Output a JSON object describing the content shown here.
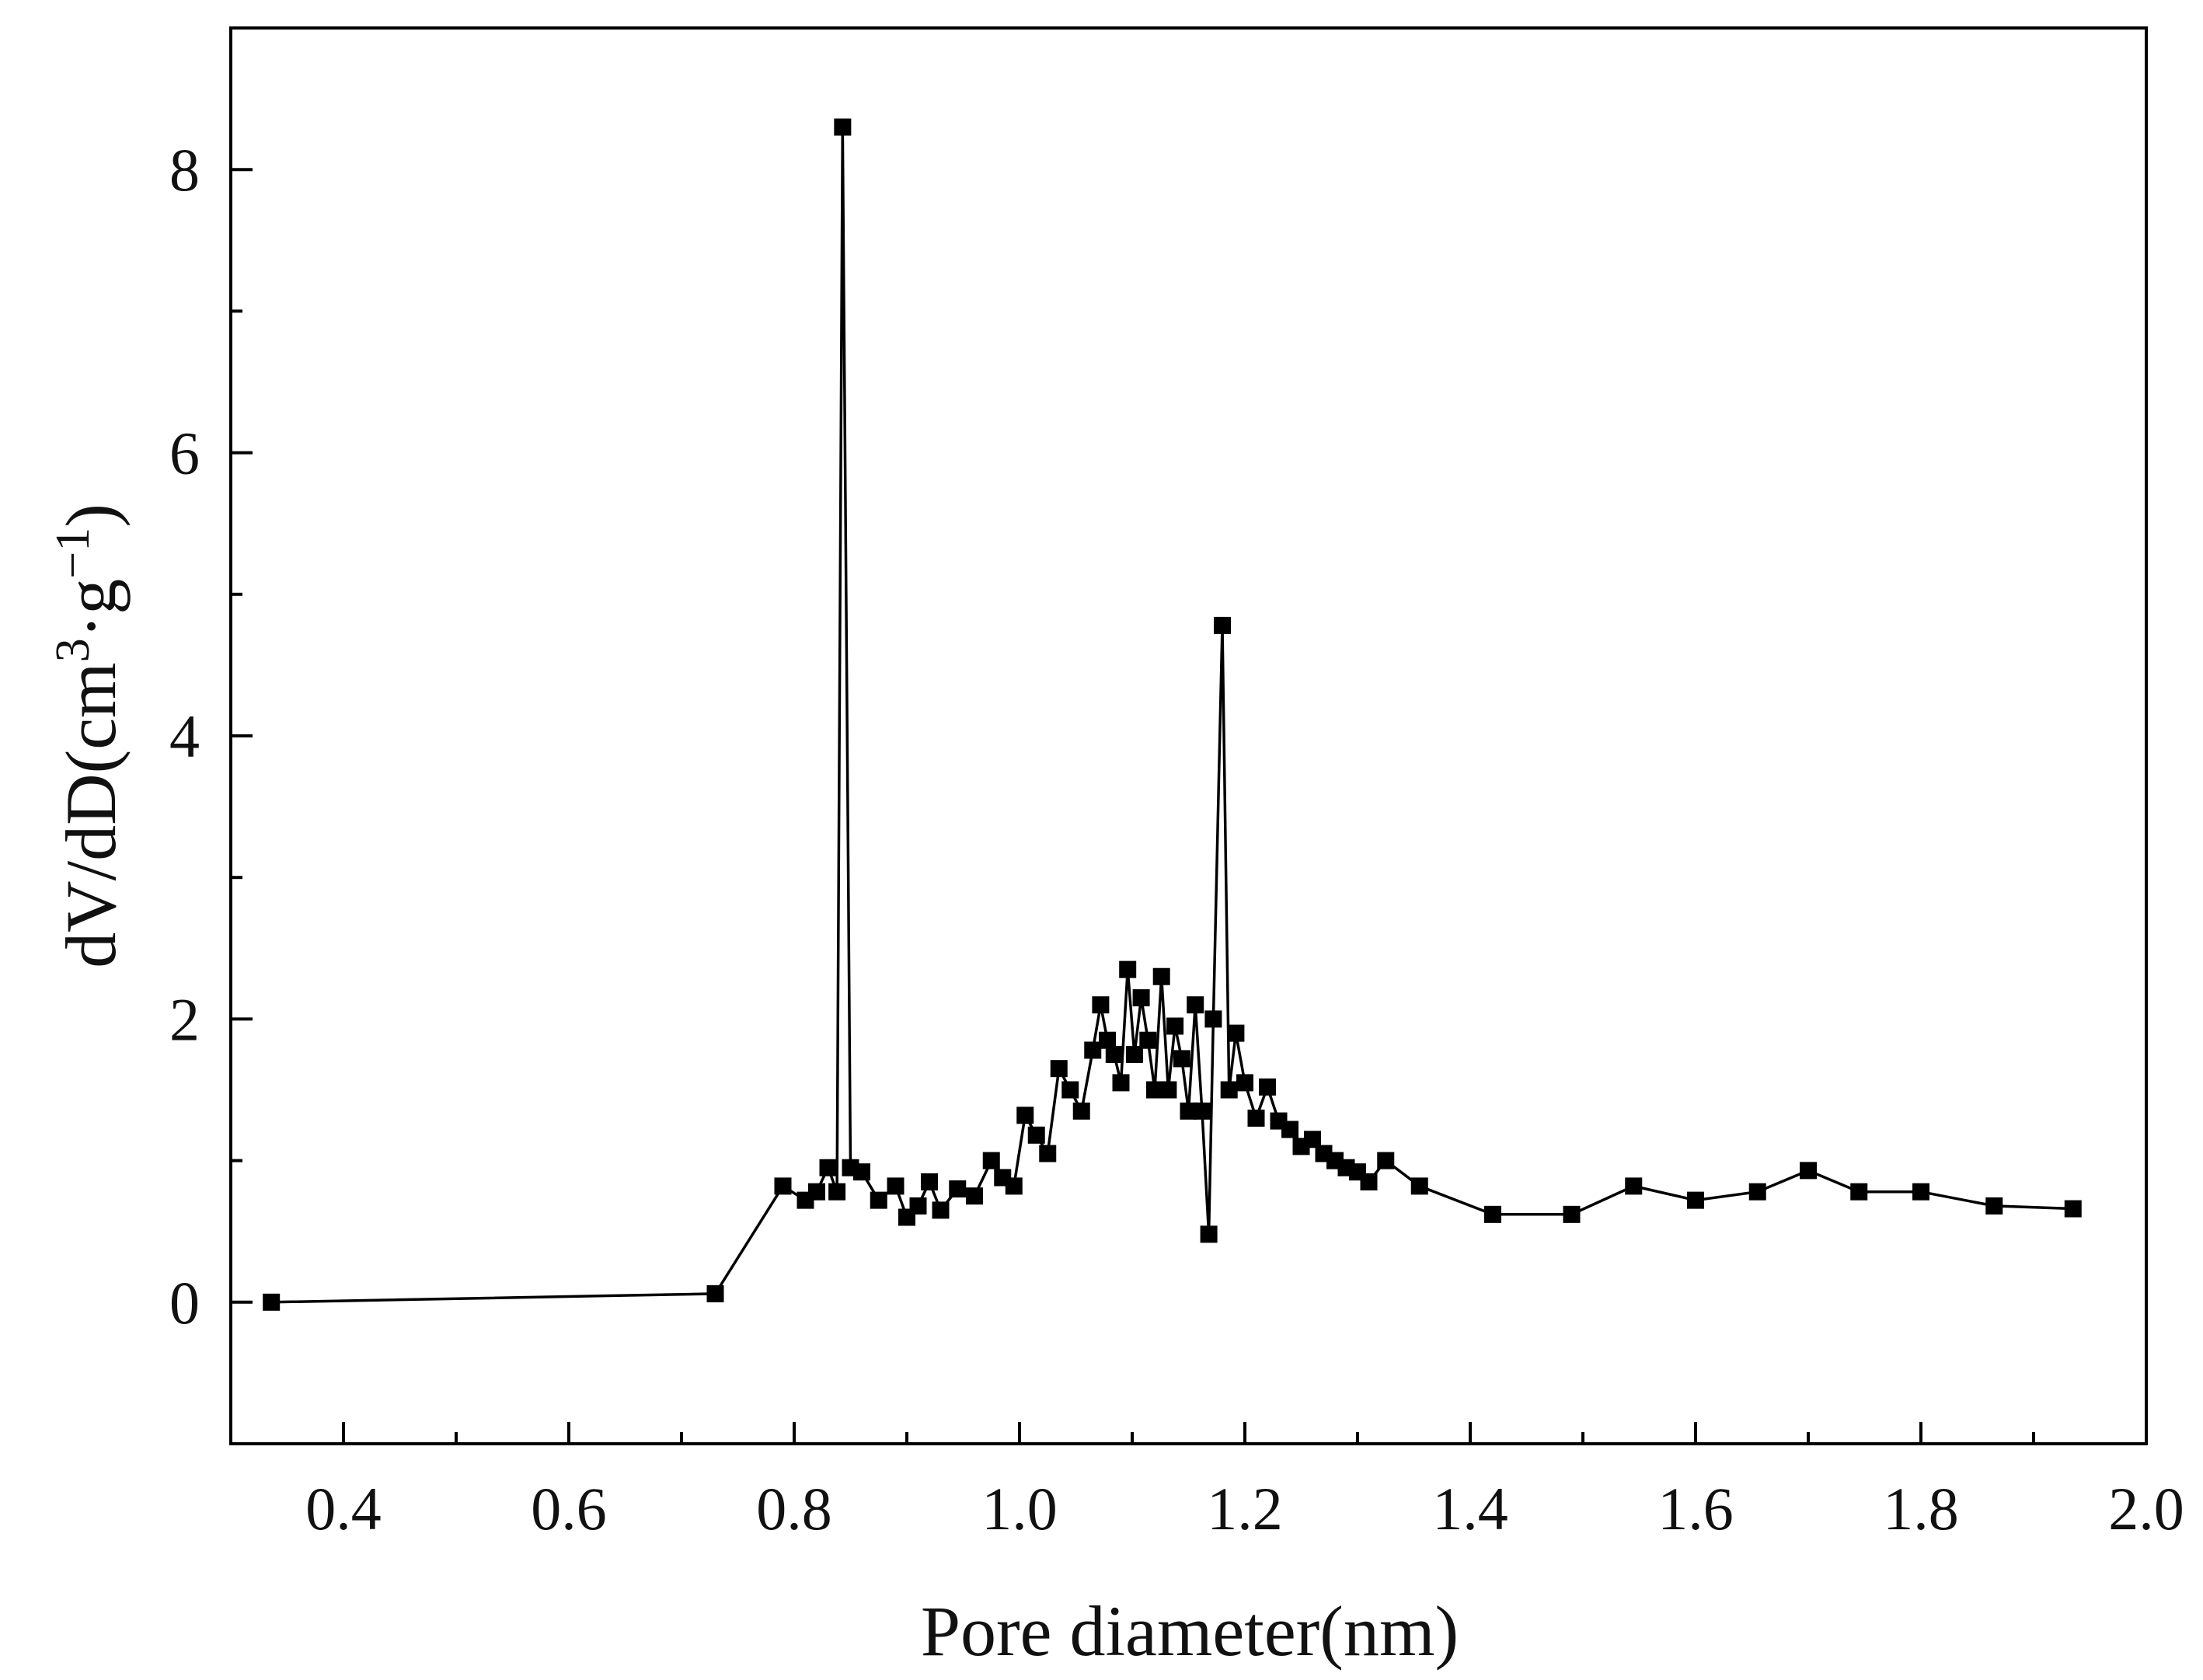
{
  "chart_data": {
    "type": "line",
    "xlabel": "Pore diameter(nm)",
    "ylabel_parts": {
      "base": "dV/dD(cm",
      "sup1": "3",
      "mid": "·g",
      "sup2": "−1",
      "end": ")"
    },
    "xlim": [
      0.3,
      2.0
    ],
    "ylim": [
      -1,
      9
    ],
    "x_ticks": [
      0.4,
      0.6,
      0.8,
      1.0,
      1.2,
      1.4,
      1.6,
      1.8,
      2.0
    ],
    "x_tick_labels": [
      "0.4",
      "0.6",
      "0.8",
      "1.0",
      "1.2",
      "1.4",
      "1.6",
      "1.8",
      "2.0"
    ],
    "y_ticks": [
      0,
      2,
      4,
      6,
      8
    ],
    "y_tick_labels": [
      "0",
      "2",
      "4",
      "6",
      "8"
    ],
    "grid": false,
    "legend": "none",
    "marker": "square",
    "color": "#000000",
    "series": [
      {
        "x": [
          0.336,
          0.73,
          0.79,
          0.81,
          0.82,
          0.83,
          0.838,
          0.843,
          0.85,
          0.86,
          0.875,
          0.89,
          0.9,
          0.91,
          0.92,
          0.93,
          0.945,
          0.96,
          0.975,
          0.985,
          0.995,
          1.005,
          1.015,
          1.025,
          1.035,
          1.045,
          1.055,
          1.065,
          1.072,
          1.078,
          1.084,
          1.09,
          1.096,
          1.102,
          1.108,
          1.114,
          1.12,
          1.126,
          1.132,
          1.138,
          1.144,
          1.15,
          1.156,
          1.162,
          1.168,
          1.172,
          1.18,
          1.186,
          1.192,
          1.2,
          1.21,
          1.22,
          1.23,
          1.24,
          1.25,
          1.26,
          1.27,
          1.28,
          1.29,
          1.3,
          1.31,
          1.325,
          1.355,
          1.42,
          1.49,
          1.545,
          1.6,
          1.655,
          1.7,
          1.745,
          1.8,
          1.865,
          1.935
        ],
        "y": [
          0.0,
          0.06,
          0.82,
          0.72,
          0.78,
          0.95,
          0.78,
          8.3,
          0.95,
          0.92,
          0.72,
          0.82,
          0.6,
          0.68,
          0.85,
          0.65,
          0.8,
          0.75,
          1.0,
          0.88,
          0.82,
          1.32,
          1.18,
          1.05,
          1.65,
          1.5,
          1.35,
          1.78,
          2.1,
          1.85,
          1.75,
          1.55,
          2.35,
          1.75,
          2.15,
          1.85,
          1.5,
          2.3,
          1.5,
          1.95,
          1.72,
          1.35,
          2.1,
          1.35,
          0.48,
          2.0,
          4.78,
          1.5,
          1.9,
          1.55,
          1.3,
          1.52,
          1.28,
          1.22,
          1.1,
          1.15,
          1.05,
          1.0,
          0.95,
          0.92,
          0.85,
          1.0,
          0.82,
          0.62,
          0.62,
          0.82,
          0.72,
          0.78,
          0.93,
          0.78,
          0.78,
          0.68,
          0.66
        ]
      }
    ]
  }
}
